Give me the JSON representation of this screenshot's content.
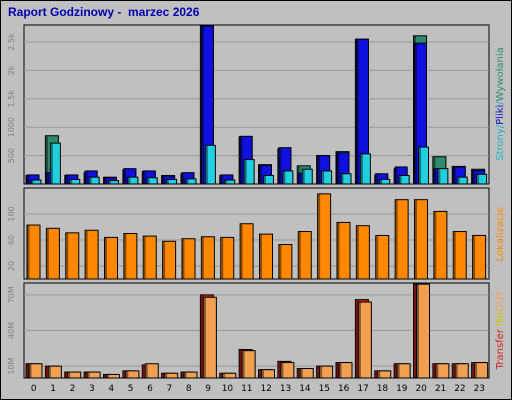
{
  "title": "Raport Godzinowy -  marzec 2026",
  "colors": {
    "strony": "#2e8b6f",
    "pliki": "#1010e0",
    "wywolania": "#20d0e0",
    "lokalizacje": "#ff8800",
    "transfer_in": "#d02020",
    "transfer_out": "#f0a050"
  },
  "side_labels": {
    "panel1": [
      {
        "text": "Strony",
        "color": "#20b0c0"
      },
      {
        "text": "/",
        "color": "#20b0c0"
      },
      {
        "text": "Pliki",
        "color": "#1010c0"
      },
      {
        "text": "/",
        "color": "#20b0c0"
      },
      {
        "text": "Wywołania",
        "color": "#2e8b6f"
      }
    ],
    "panel2": [
      {
        "text": "Lokalizacje",
        "color": "#ff8800"
      }
    ],
    "panel3": [
      {
        "text": "Transfer",
        "color": "#d02020"
      },
      {
        "text": " IN",
        "color": "#c8c800"
      },
      {
        "text": "/",
        "color": "#c8c800"
      },
      {
        "text": "OUT",
        "color": "#f0a050"
      }
    ]
  },
  "chart_data": [
    {
      "type": "bar",
      "categories": [
        "0",
        "1",
        "2",
        "3",
        "4",
        "5",
        "6",
        "7",
        "8",
        "9",
        "10",
        "11",
        "12",
        "13",
        "14",
        "15",
        "16",
        "17",
        "18",
        "19",
        "20",
        "21",
        "22",
        "23"
      ],
      "yticks": [
        "500",
        "1000",
        "1.5k",
        "2k",
        "2.5k"
      ],
      "ylim": [
        0,
        2800
      ],
      "series": [
        {
          "name": "Wywołania",
          "values": [
            150,
            850,
            150,
            200,
            120,
            250,
            220,
            150,
            180,
            2900,
            150,
            830,
            340,
            620,
            320,
            500,
            570,
            2550,
            160,
            270,
            2610,
            480,
            310,
            260
          ]
        },
        {
          "name": "Pliki",
          "values": [
            160,
            200,
            160,
            230,
            110,
            270,
            230,
            140,
            200,
            2850,
            160,
            840,
            330,
            640,
            190,
            500,
            550,
            2550,
            180,
            300,
            2480,
            270,
            300,
            240
          ]
        },
        {
          "name": "Strony",
          "values": [
            70,
            720,
            80,
            120,
            60,
            120,
            110,
            80,
            90,
            680,
            70,
            430,
            150,
            230,
            260,
            230,
            180,
            530,
            80,
            150,
            650,
            270,
            120,
            170
          ]
        }
      ]
    },
    {
      "type": "bar",
      "categories": [
        "0",
        "1",
        "2",
        "3",
        "4",
        "5",
        "6",
        "7",
        "8",
        "9",
        "10",
        "11",
        "12",
        "13",
        "14",
        "15",
        "16",
        "17",
        "18",
        "19",
        "20",
        "21",
        "22",
        "23"
      ],
      "yticks": [
        "20",
        "60",
        "100"
      ],
      "ylim": [
        0,
        140
      ],
      "series": [
        {
          "name": "Lokalizacje",
          "values": [
            83,
            78,
            71,
            75,
            64,
            70,
            66,
            58,
            62,
            65,
            64,
            85,
            69,
            53,
            73,
            131,
            87,
            82,
            67,
            122,
            122,
            104,
            73,
            67
          ]
        }
      ]
    },
    {
      "type": "bar",
      "categories": [
        "0",
        "1",
        "2",
        "3",
        "4",
        "5",
        "6",
        "7",
        "8",
        "9",
        "10",
        "11",
        "12",
        "13",
        "14",
        "15",
        "16",
        "17",
        "18",
        "19",
        "20",
        "21",
        "22",
        "23"
      ],
      "yticks": [
        "10M",
        "40M",
        "70M"
      ],
      "ylim": [
        0,
        80
      ],
      "series": [
        {
          "name": "Transfer IN",
          "values": [
            12,
            10,
            5,
            5,
            3,
            6,
            11,
            4,
            5,
            70,
            4,
            24,
            7,
            14,
            8,
            10,
            13,
            66,
            6,
            12,
            80,
            12,
            12,
            13
          ]
        },
        {
          "name": "Transfer OUT",
          "values": [
            12,
            10,
            5,
            5,
            3,
            6,
            12,
            4,
            5,
            68,
            4,
            23,
            7,
            13,
            8,
            10,
            13,
            64,
            6,
            12,
            79,
            12,
            12,
            13
          ]
        }
      ]
    }
  ]
}
